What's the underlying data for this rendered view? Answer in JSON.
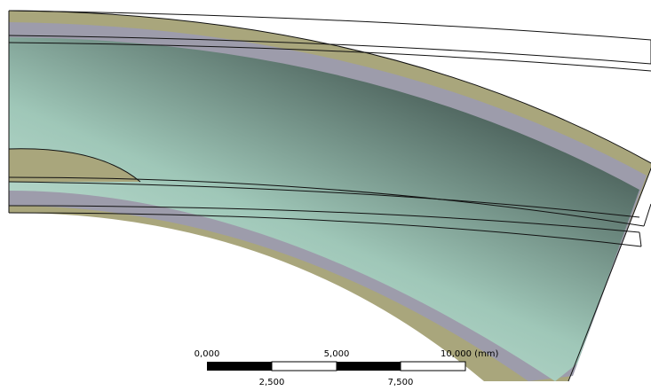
{
  "scale_bar": {
    "top_labels": [
      "0,000",
      "5,000",
      "10,000 (mm)"
    ],
    "bottom_labels": [
      "2,500",
      "7,500"
    ]
  }
}
